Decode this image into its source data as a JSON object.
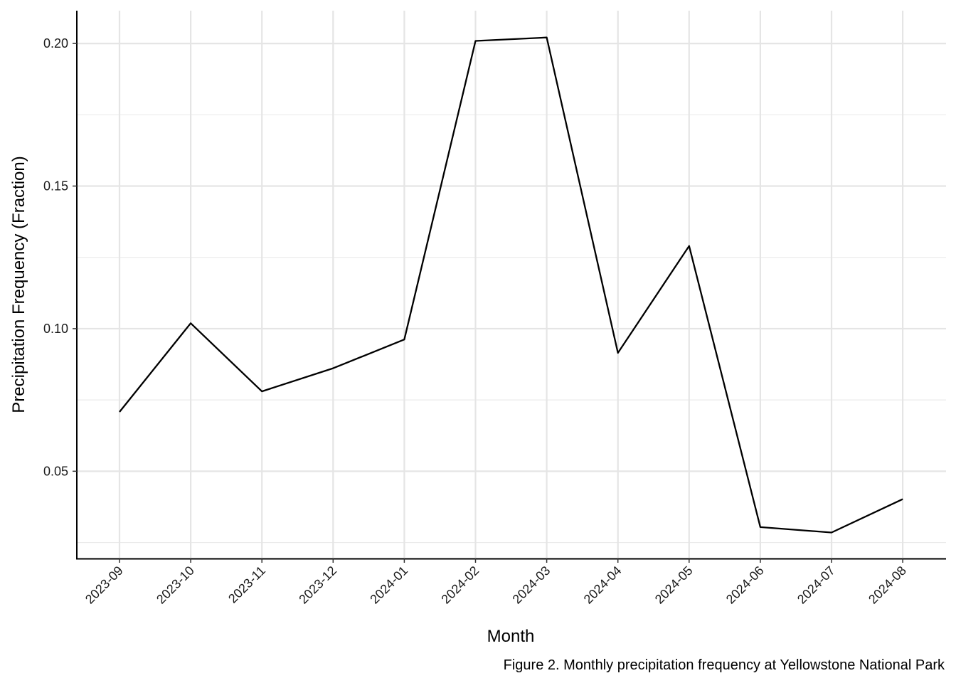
{
  "chart_data": {
    "type": "line",
    "x": [
      "2023-09",
      "2023-10",
      "2023-11",
      "2023-12",
      "2024-01",
      "2024-02",
      "2024-03",
      "2024-04",
      "2024-05",
      "2024-06",
      "2024-07",
      "2024-08"
    ],
    "series": [
      {
        "values": [
          0.0708,
          0.1019,
          0.078,
          0.0861,
          0.0962,
          0.2009,
          0.2021,
          0.0915,
          0.129,
          0.0304,
          0.0285,
          0.0402
        ],
        "color": "#000000"
      }
    ],
    "xlabel": "Month",
    "ylabel": "Precipitation Frequency (Fraction)",
    "ylim": [
      0.0194,
      0.2115
    ],
    "yticks": [
      0.05,
      0.1,
      0.15,
      0.2
    ],
    "ytick_labels": [
      "0.05",
      "0.10",
      "0.15",
      "0.20"
    ],
    "grid": true,
    "caption": "Figure 2. Monthly precipitation frequency at Yellowstone National Park"
  }
}
